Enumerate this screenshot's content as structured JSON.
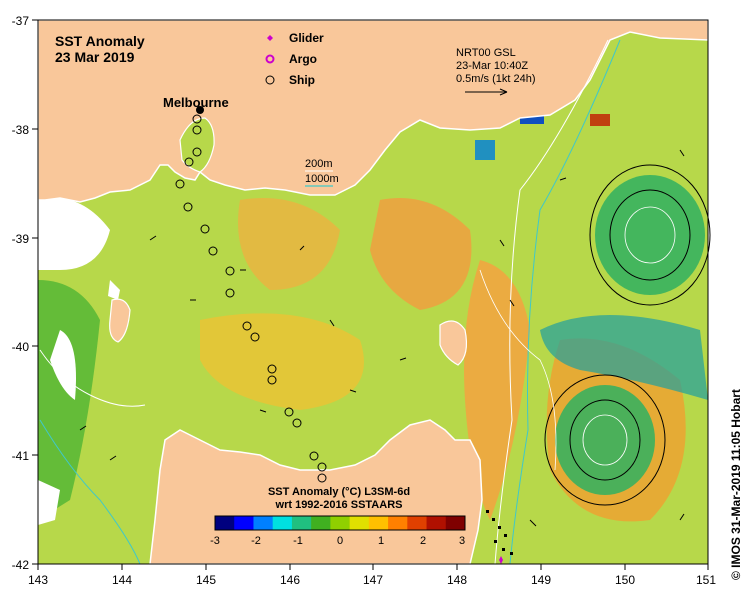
{
  "title": {
    "line1": "SST Anomaly",
    "line2": "23 Mar 2019"
  },
  "city": "Melbourne",
  "legend": [
    {
      "label": "Glider",
      "icon": "glider-icon",
      "color": "#cc00cc"
    },
    {
      "label": "Argo",
      "icon": "argo-float-icon",
      "color": "#cc00cc"
    },
    {
      "label": "Ship",
      "icon": "ship-icon",
      "color": "#000000"
    }
  ],
  "current_key": {
    "line1": "NRT00 GSL",
    "line2": "23-Mar 10:40Z",
    "line3": "0.5m/s (1kt 24h)"
  },
  "isobaths": {
    "shallow": "200m",
    "deep": "1000m"
  },
  "colorbar": {
    "title": "SST Anomaly (°C) L3SM-6d",
    "subtitle": "wrt 1992-2016 SSTAARS",
    "ticks": [
      "-3",
      "-2",
      "-1",
      "0",
      "1",
      "2",
      "3"
    ],
    "colors": [
      "#00007f",
      "#0000ff",
      "#0080ff",
      "#00e0e0",
      "#20c080",
      "#40b020",
      "#90d000",
      "#e0e000",
      "#ffc000",
      "#ff8000",
      "#e04000",
      "#b01000",
      "#7f0000"
    ]
  },
  "axes": {
    "x_ticks": [
      "143",
      "144",
      "145",
      "146",
      "147",
      "148",
      "149",
      "150",
      "151"
    ],
    "y_ticks": [
      "-37",
      "-38",
      "-39",
      "-40",
      "-41",
      "-42"
    ]
  },
  "credit": "© IMOS 31-Mar-2019 11:05 Hobart",
  "colors": {
    "land": "#f9c79a",
    "sea_base": "#b7d84a",
    "coast": "#ffffff",
    "frame": "#000000"
  }
}
